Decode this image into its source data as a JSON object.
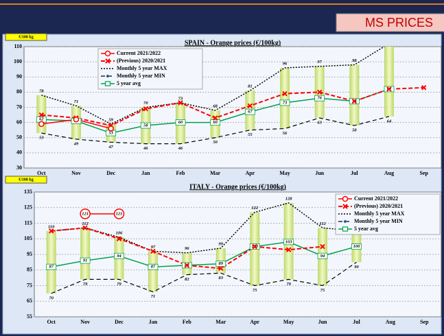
{
  "header": {
    "title": "MS PRICES"
  },
  "chart_data": [
    {
      "type": "line",
      "title": "SPAIN  -  Orange  prices   (€/100kg)",
      "unit_label": "€/100 kg",
      "categories": [
        "Oct",
        "Nov",
        "Dec",
        "Jan",
        "Feb",
        "Mar",
        "Apr",
        "May",
        "Jun",
        "Jul",
        "Aug",
        "Sep"
      ],
      "ylim": [
        30,
        110
      ],
      "yticks": [
        30,
        40,
        50,
        60,
        70,
        80,
        90,
        100,
        110
      ],
      "grid": true,
      "legend": "top-left",
      "series": [
        {
          "name": "Current 2021/2022",
          "color": "#ff0000",
          "data_labels": false,
          "values": [
            59,
            62,
            56,
            null,
            null,
            null,
            null,
            null,
            null,
            null,
            null,
            null
          ]
        },
        {
          "name": "(Previous)  2020/2021",
          "color": "#ff0000",
          "data_labels": false,
          "values": [
            65,
            63,
            58,
            69,
            73,
            63,
            71,
            79,
            80,
            74,
            82,
            83
          ]
        },
        {
          "name": "Monthly 5 year MAX",
          "color": "#000000",
          "data_labels": true,
          "values": [
            78,
            71,
            59,
            70,
            73,
            68,
            81,
            96,
            97,
            98,
            112,
            null
          ]
        },
        {
          "name": "Monthly 5 year MIN",
          "color": "#000000",
          "data_labels": true,
          "values": [
            53,
            49,
            47,
            46,
            46,
            50,
            55,
            56,
            63,
            58,
            64,
            null
          ]
        },
        {
          "name": "5 year avg",
          "color": "#00a04a",
          "data_labels": true,
          "values": [
            62,
            61,
            53,
            58,
            60,
            60,
            67,
            73,
            76,
            74,
            82,
            null
          ]
        }
      ]
    },
    {
      "type": "line",
      "title": "ITALY  -  Orange  prices   (€/100kg)",
      "unit_label": "€/100 kg",
      "categories": [
        "Oct",
        "Nov",
        "Dec",
        "Jan",
        "Feb",
        "Mar",
        "Apr",
        "May",
        "Jun",
        "Jul",
        "Aug",
        "Sep"
      ],
      "ylim": [
        55,
        135
      ],
      "yticks": [
        55,
        65,
        75,
        85,
        95,
        105,
        115,
        125,
        135
      ],
      "grid": true,
      "legend": "top-right",
      "series": [
        {
          "name": "Current 2021/2022",
          "color": "#ff0000",
          "data_labels": true,
          "values": [
            null,
            121,
            121,
            null,
            null,
            null,
            null,
            null,
            null,
            null,
            null,
            null
          ]
        },
        {
          "name": "(Previous)  2020/2021",
          "color": "#ff0000",
          "data_labels": false,
          "values": [
            110,
            112,
            105,
            97,
            88,
            86,
            100,
            98,
            100,
            null,
            null,
            null
          ]
        },
        {
          "name": "Monthly 5 year MAX",
          "color": "#000000",
          "data_labels": true,
          "values": [
            110,
            112,
            106,
            97,
            96,
            99,
            122,
            128,
            112,
            110,
            null,
            null
          ]
        },
        {
          "name": "Monthly 5 year MIN",
          "color": "#000000",
          "data_labels": true,
          "values": [
            70,
            79,
            79,
            71,
            82,
            83,
            75,
            79,
            75,
            90,
            null,
            null
          ]
        },
        {
          "name": "5 year avg",
          "color": "#00a04a",
          "data_labels": true,
          "values": [
            87,
            91,
            94,
            87,
            88,
            89,
            100,
            103,
            94,
            100,
            null,
            null
          ]
        }
      ]
    }
  ]
}
